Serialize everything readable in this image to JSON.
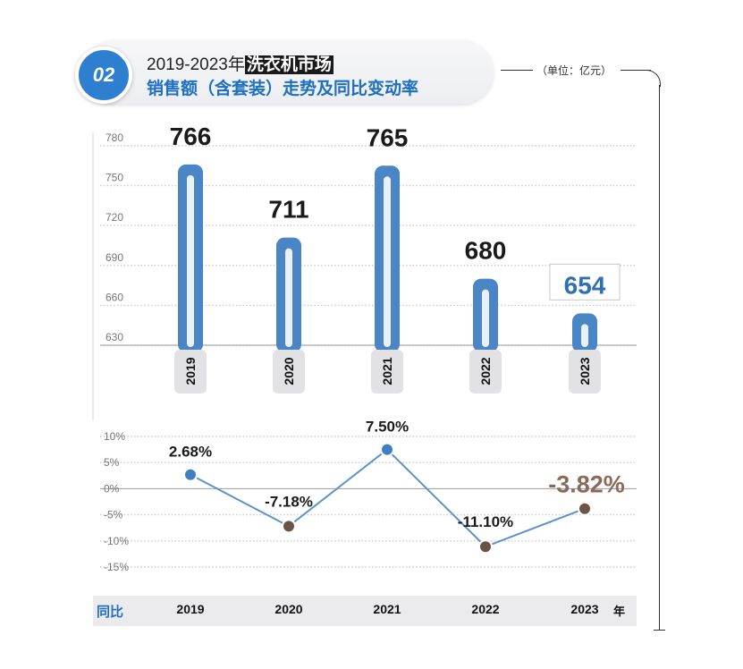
{
  "header": {
    "badge": "02",
    "title_prefix": "2019-2023年",
    "title_highlight": "洗衣机市场",
    "title_line2": "销售额（含套装）走势及同比变动率",
    "unit_label": "（单位：亿元）"
  },
  "footer": {
    "row_label": "同比",
    "unit": "年"
  },
  "colors": {
    "accent_blue": "#2f7fd0",
    "bar_blue": "#4a86c5",
    "line_blue": "#5a93cc",
    "dot_blue": "#3f7fc2",
    "dot_brown": "#6b5445",
    "highlight_brown": "#8a6a58"
  },
  "chart_data": [
    {
      "type": "bar",
      "categories": [
        "2019",
        "2020",
        "2021",
        "2022",
        "2023"
      ],
      "values": [
        766,
        711,
        765,
        680,
        654
      ],
      "data_labels": [
        "766",
        "711",
        "765",
        "680",
        "654"
      ],
      "highlight_index": 4,
      "yticks": [
        "780",
        "750",
        "720",
        "690",
        "660",
        "630"
      ],
      "ylim": [
        630,
        780
      ],
      "grid": true
    },
    {
      "type": "line",
      "categories": [
        "2019",
        "2020",
        "2021",
        "2022",
        "2023"
      ],
      "values": [
        2.68,
        -7.18,
        7.5,
        -11.1,
        -3.82
      ],
      "data_labels": [
        "2.68%",
        "-7.18%",
        "7.50%",
        "-11.10%",
        "-3.82%"
      ],
      "highlight_index": 4,
      "yticks": [
        "10%",
        "5%",
        "0%",
        "-5%",
        "-10%",
        "-15%"
      ],
      "ylim": [
        -15,
        10
      ],
      "grid": true
    }
  ]
}
